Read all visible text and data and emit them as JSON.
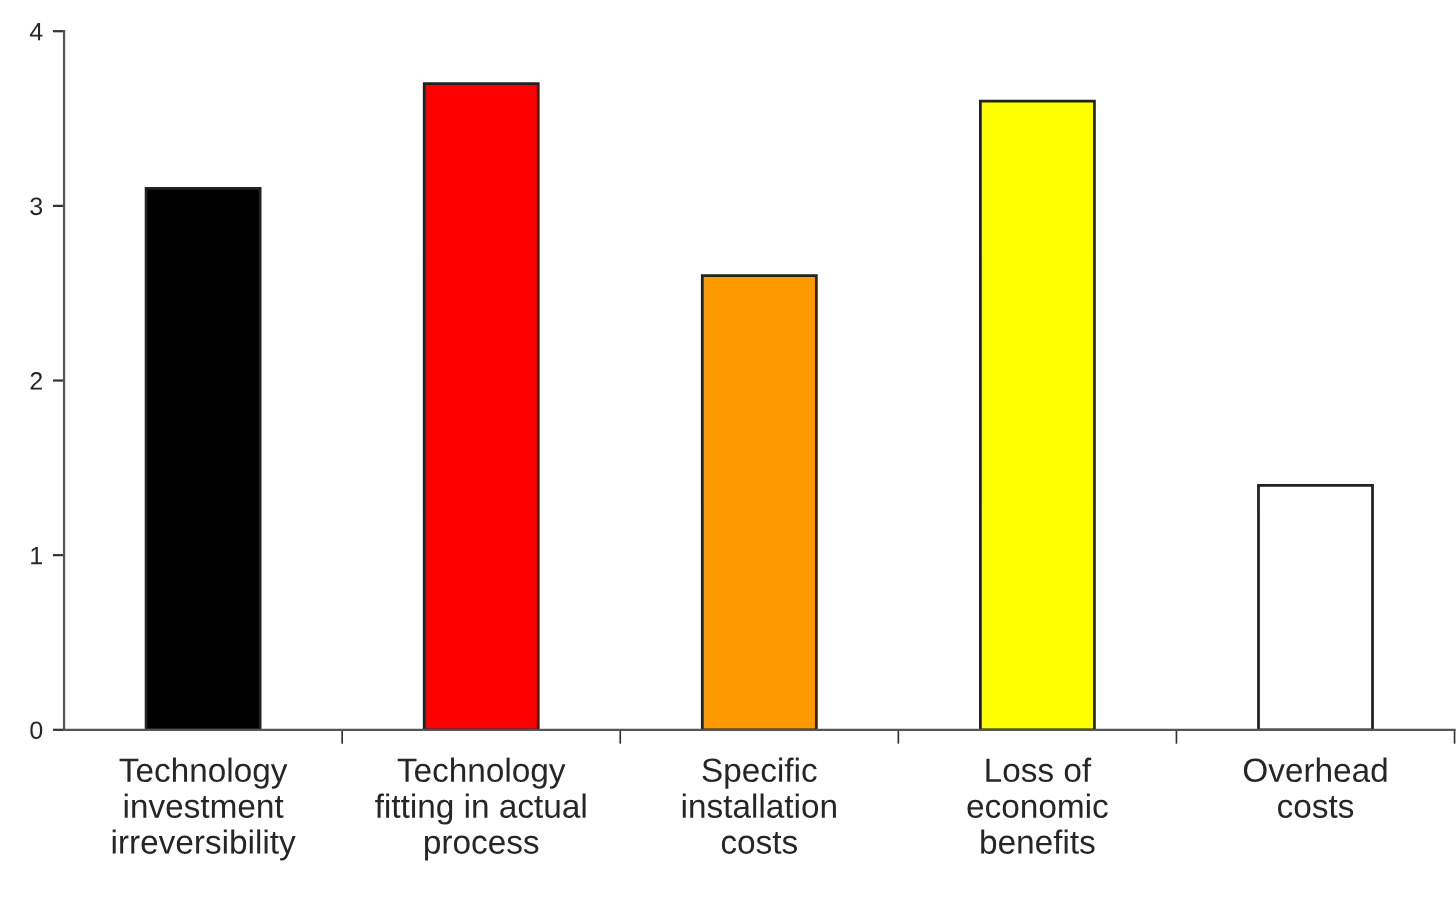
{
  "chart_data": {
    "type": "bar",
    "categories": [
      "Technology\ninvestment\nirreversibility",
      "Technology\nfitting in actual\nprocess",
      "Specific\ninstallation\ncosts",
      "Loss of\neconomic\nbenefits",
      "Overhead\ncosts"
    ],
    "values": [
      3.1,
      3.7,
      2.6,
      3.6,
      1.4
    ],
    "colors": [
      "#000000",
      "#ff0000",
      "#ff9900",
      "#ffff00",
      "#ffffff"
    ],
    "ylim": [
      0,
      4
    ],
    "yticks": [
      0,
      1,
      2,
      3,
      4
    ],
    "grid": false
  }
}
